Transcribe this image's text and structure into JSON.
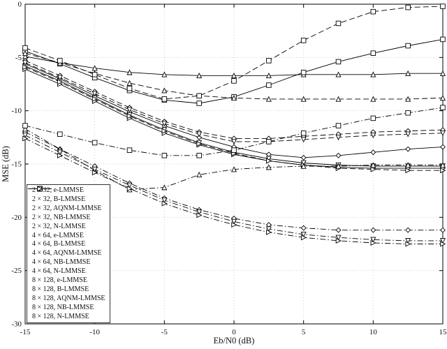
{
  "figure": {
    "background": "#ffffff",
    "axis_color": "#000000",
    "grid_color": "#bfbfbf",
    "line_color": "#000000"
  },
  "chart_data": {
    "type": "line",
    "title": "",
    "xlabel": "Eb/N0 (dB)",
    "ylabel": "MSE (dB)",
    "xlim": [
      -15,
      15
    ],
    "ylim": [
      -30,
      0
    ],
    "xticks": [
      -15,
      -10,
      -5,
      0,
      5,
      10,
      15
    ],
    "yticks": [
      0,
      -5,
      -10,
      -15,
      -20,
      -25,
      -30
    ],
    "grid": true,
    "legend_position": "bottom-left",
    "x": [
      -15,
      -12.5,
      -10,
      -7.5,
      -5,
      -2.5,
      0,
      2.5,
      5,
      7.5,
      10,
      12.5,
      15
    ],
    "series": [
      {
        "name": "2 × 32, e-LMMSE",
        "marker": "diamond",
        "line_style": "solid",
        "values": [
          -5.6,
          -7.0,
          -8.6,
          -10.1,
          -11.4,
          -12.5,
          -13.4,
          -14.1,
          -14.4,
          -14.2,
          -13.9,
          -13.6,
          -13.4
        ]
      },
      {
        "name": "2 × 32, B-LMMSE",
        "marker": "triangle-up",
        "line_style": "solid",
        "values": [
          -4.9,
          -5.5,
          -6.0,
          -6.4,
          -6.6,
          -6.7,
          -6.7,
          -6.7,
          -6.6,
          -6.6,
          -6.6,
          -6.5,
          -6.5
        ]
      },
      {
        "name": "2 × 32, AQNM-LMMSE",
        "marker": "square",
        "line_style": "solid",
        "values": [
          -4.4,
          -5.6,
          -6.9,
          -8.1,
          -9.0,
          -9.3,
          -8.7,
          -7.6,
          -6.4,
          -5.4,
          -4.6,
          -3.9,
          -3.3
        ]
      },
      {
        "name": "2 × 32, NB-LMMSE",
        "marker": "triangle-down",
        "line_style": "solid",
        "values": [
          -5.8,
          -7.2,
          -8.8,
          -10.4,
          -11.8,
          -13.0,
          -13.9,
          -14.5,
          -14.9,
          -15.1,
          -15.2,
          -15.2,
          -15.2
        ]
      },
      {
        "name": "2 × 32, N-LMMSE",
        "marker": "triangle-right",
        "line_style": "solid",
        "values": [
          -6.1,
          -7.5,
          -9.1,
          -10.7,
          -12.1,
          -13.2,
          -14.1,
          -14.7,
          -15.1,
          -15.3,
          -15.4,
          -15.4,
          -15.4
        ]
      },
      {
        "name": "4 × 64, e-LMMSE",
        "marker": "diamond",
        "line_style": "dashed",
        "values": [
          -5.3,
          -6.7,
          -8.2,
          -9.7,
          -11.0,
          -12.0,
          -12.6,
          -12.6,
          -12.4,
          -12.2,
          -12.0,
          -11.9,
          -11.8
        ]
      },
      {
        "name": "4 × 64, B-LMMSE",
        "marker": "triangle-up",
        "line_style": "dashed",
        "values": [
          -4.6,
          -5.5,
          -6.5,
          -7.4,
          -8.1,
          -8.6,
          -8.8,
          -8.9,
          -8.9,
          -8.9,
          -8.9,
          -8.9,
          -8.8
        ]
      },
      {
        "name": "4 × 64, AQNM-LMMSE",
        "marker": "square",
        "line_style": "dashed",
        "values": [
          -4.1,
          -5.3,
          -6.6,
          -7.9,
          -8.9,
          -8.6,
          -7.2,
          -5.3,
          -3.4,
          -1.8,
          -0.7,
          -0.3,
          -0.2
        ]
      },
      {
        "name": "4 × 64, NB-LMMSE",
        "marker": "triangle-down",
        "line_style": "dashed",
        "values": [
          -5.5,
          -6.9,
          -8.4,
          -9.9,
          -11.2,
          -12.2,
          -12.9,
          -12.9,
          -12.7,
          -12.5,
          -12.3,
          -12.2,
          -12.1
        ]
      },
      {
        "name": "4 × 64, N-LMMSE",
        "marker": "triangle-right",
        "line_style": "dashed",
        "values": [
          -5.9,
          -7.3,
          -8.9,
          -10.5,
          -11.9,
          -13.1,
          -14.0,
          -14.7,
          -15.1,
          -15.4,
          -15.5,
          -15.6,
          -15.6
        ]
      },
      {
        "name": "8 × 128, e-LMMSE",
        "marker": "diamond",
        "line_style": "dashdot",
        "values": [
          -12.0,
          -13.6,
          -15.2,
          -16.8,
          -18.2,
          -19.3,
          -20.1,
          -20.7,
          -21.0,
          -21.2,
          -21.2,
          -21.2,
          -21.2
        ]
      },
      {
        "name": "8 × 128, B-LMMSE",
        "marker": "triangle-up",
        "line_style": "dashdot",
        "values": [
          -11.7,
          -13.6,
          -15.6,
          -17.4,
          -17.2,
          -16.0,
          -15.5,
          -15.3,
          -15.2,
          -15.2,
          -15.1,
          -15.1,
          -15.1
        ]
      },
      {
        "name": "8 × 128, AQNM-LMMSE",
        "marker": "square",
        "line_style": "dashdot",
        "values": [
          -11.4,
          -12.2,
          -13.0,
          -13.7,
          -14.2,
          -14.2,
          -13.7,
          -12.9,
          -12.1,
          -11.4,
          -10.7,
          -10.2,
          -9.7
        ]
      },
      {
        "name": "8 × 128, NB-LMMSE",
        "marker": "triangle-down",
        "line_style": "dashdot",
        "values": [
          -12.3,
          -13.9,
          -15.5,
          -17.0,
          -18.4,
          -19.5,
          -20.4,
          -21.1,
          -21.6,
          -21.9,
          -22.1,
          -22.2,
          -22.2
        ]
      },
      {
        "name": "8 × 128, N-LMMSE",
        "marker": "triangle-right",
        "line_style": "dashdot",
        "values": [
          -12.6,
          -14.2,
          -15.8,
          -17.3,
          -18.7,
          -19.8,
          -20.7,
          -21.4,
          -21.9,
          -22.2,
          -22.4,
          -22.5,
          -22.5
        ]
      }
    ]
  }
}
